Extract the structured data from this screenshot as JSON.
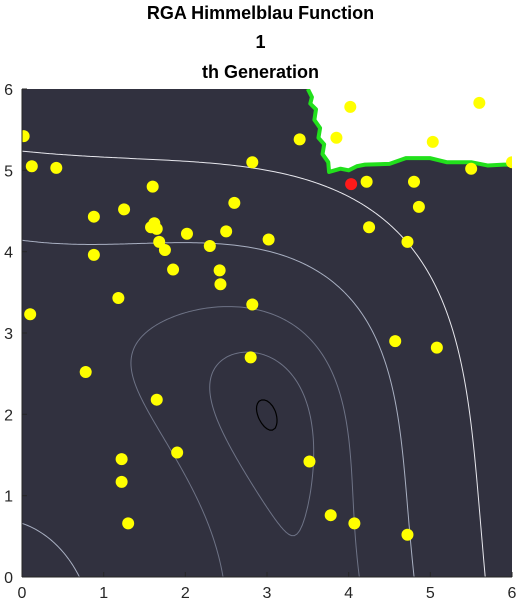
{
  "chart_data": {
    "type": "scatter",
    "title_lines": [
      "RGA Himmelblau Function",
      "1",
      "th Generation"
    ],
    "xlim": [
      0,
      6
    ],
    "ylim": [
      0,
      6
    ],
    "x_ticks": [
      0,
      1,
      2,
      3,
      4,
      5,
      6
    ],
    "y_ticks": [
      0,
      1,
      2,
      3,
      4,
      5,
      6
    ],
    "grid": false,
    "colors": {
      "background": "#31313f",
      "population": "#ffff00",
      "best": "#ff1a1a",
      "boundary": "#22e01c",
      "contour_outer": "#e8e8ee",
      "contour_mid": "#a9b0c2",
      "contour_inner": "#6e7386",
      "contour_core": "#000000",
      "excluded_region": "#ffffff"
    },
    "population": [
      [
        0.02,
        5.42
      ],
      [
        0.12,
        5.05
      ],
      [
        0.42,
        5.03
      ],
      [
        0.1,
        3.23
      ],
      [
        0.88,
        4.43
      ],
      [
        0.88,
        3.96
      ],
      [
        1.25,
        4.52
      ],
      [
        1.18,
        3.43
      ],
      [
        0.78,
        2.52
      ],
      [
        1.22,
        1.45
      ],
      [
        1.22,
        1.17
      ],
      [
        1.3,
        0.66
      ],
      [
        1.58,
        4.3
      ],
      [
        1.62,
        4.35
      ],
      [
        1.6,
        4.8
      ],
      [
        1.65,
        4.28
      ],
      [
        1.68,
        4.12
      ],
      [
        1.75,
        4.02
      ],
      [
        1.85,
        3.78
      ],
      [
        2.02,
        4.22
      ],
      [
        2.3,
        4.07
      ],
      [
        2.42,
        3.77
      ],
      [
        2.43,
        3.6
      ],
      [
        2.5,
        4.25
      ],
      [
        2.6,
        4.6
      ],
      [
        2.82,
        5.1
      ],
      [
        3.02,
        4.15
      ],
      [
        2.82,
        3.35
      ],
      [
        2.8,
        2.7
      ],
      [
        1.65,
        2.18
      ],
      [
        1.9,
        1.53
      ],
      [
        3.4,
        5.38
      ],
      [
        3.85,
        5.4
      ],
      [
        4.02,
        5.78
      ],
      [
        4.22,
        4.86
      ],
      [
        4.25,
        4.3
      ],
      [
        3.52,
        1.42
      ],
      [
        4.57,
        2.9
      ],
      [
        4.72,
        4.12
      ],
      [
        4.8,
        4.86
      ],
      [
        4.86,
        4.55
      ],
      [
        5.08,
        2.82
      ],
      [
        3.78,
        0.76
      ],
      [
        4.07,
        0.66
      ],
      [
        4.72,
        0.52
      ],
      [
        5.03,
        5.35
      ],
      [
        5.5,
        5.02
      ],
      [
        5.6,
        5.83
      ],
      [
        6.0,
        5.1
      ]
    ],
    "best_individual": [
      4.03,
      4.83
    ],
    "minimum": [
      3,
      2
    ],
    "feasible_boundary": [
      [
        3.5,
        6.0
      ],
      [
        3.55,
        5.9
      ],
      [
        3.53,
        5.82
      ],
      [
        3.6,
        5.75
      ],
      [
        3.58,
        5.62
      ],
      [
        3.65,
        5.52
      ],
      [
        3.63,
        5.4
      ],
      [
        3.7,
        5.32
      ],
      [
        3.68,
        5.2
      ],
      [
        3.75,
        5.1
      ],
      [
        3.76,
        4.98
      ],
      [
        3.9,
        5.02
      ],
      [
        4.0,
        5.0
      ],
      [
        4.1,
        5.05
      ],
      [
        4.2,
        5.07
      ],
      [
        4.5,
        5.08
      ],
      [
        4.7,
        5.15
      ],
      [
        5.0,
        5.15
      ],
      [
        5.2,
        5.1
      ],
      [
        5.5,
        5.1
      ],
      [
        5.7,
        5.06
      ],
      [
        5.9,
        5.07
      ],
      [
        6.0,
        5.07
      ]
    ]
  }
}
